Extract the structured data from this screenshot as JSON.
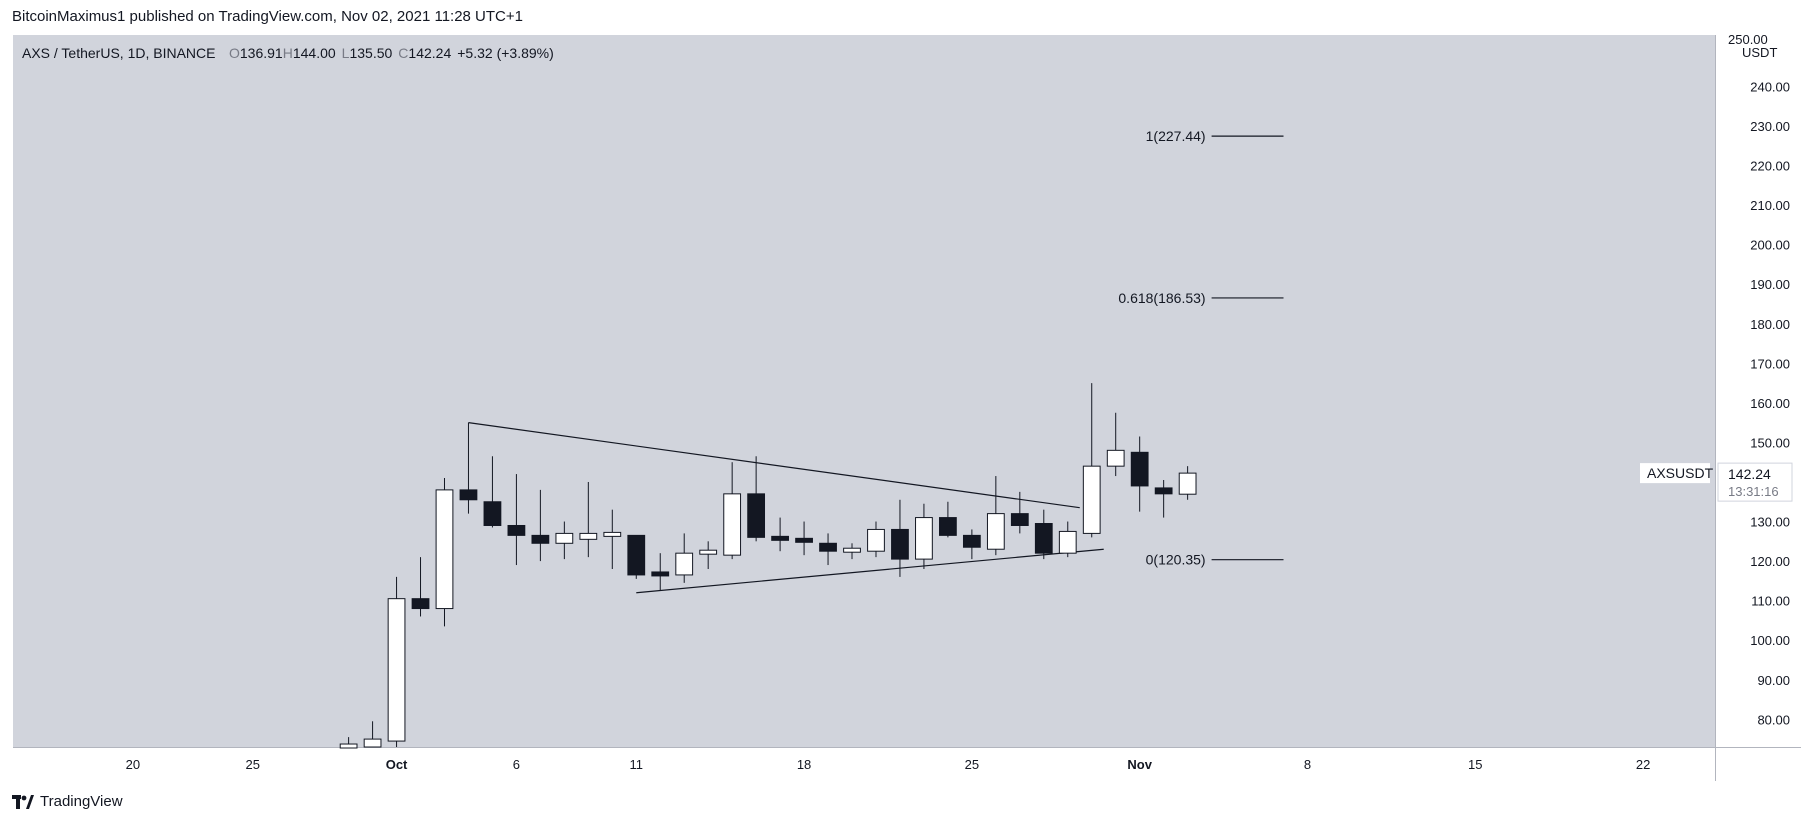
{
  "header": {
    "published_line": "BitcoinMaximus1 published on TradingView.com, Nov 02, 2021 11:28 UTC+1"
  },
  "footer": {
    "brand": "TradingView"
  },
  "colors": {
    "pane_bg": "#d1d4dc",
    "axis_bg": "#ffffff",
    "up_candle": "#ffffff",
    "down_candle": "#131722",
    "wick": "#131722",
    "text": "#131722"
  },
  "chart_data": {
    "type": "candlestick",
    "symbol_line": {
      "symbol": "AXS / TetherUS, 1D, BINANCE",
      "o_label": "O",
      "o_value": "136.91",
      "h_label": "H",
      "h_value": "144.00",
      "l_label": "L",
      "l_value": "135.50",
      "c_label": "C",
      "c_value": "142.24",
      "change": "+5.32 (+3.89%)"
    },
    "currency": "USDT",
    "ylim": [
      73,
      253
    ],
    "y_ticks": [
      "80.00",
      "90.00",
      "100.00",
      "110.00",
      "120.00",
      "130.00",
      "140.00",
      "150.00",
      "160.00",
      "170.00",
      "180.00",
      "190.00",
      "200.00",
      "210.00",
      "220.00",
      "230.00",
      "240.00"
    ],
    "y_tick_values": [
      80,
      90,
      100,
      110,
      120,
      130,
      140,
      150,
      160,
      170,
      180,
      190,
      200,
      210,
      220,
      230,
      240
    ],
    "x_ticks": [
      {
        "label": "20",
        "day": -11
      },
      {
        "label": "25",
        "day": -6
      },
      {
        "label": "Oct",
        "day": 0
      },
      {
        "label": "6",
        "day": 5
      },
      {
        "label": "11",
        "day": 10
      },
      {
        "label": "18",
        "day": 17
      },
      {
        "label": "25",
        "day": 24
      },
      {
        "label": "Nov",
        "day": 31
      },
      {
        "label": "8",
        "day": 38
      },
      {
        "label": "15",
        "day": 45
      },
      {
        "label": "22",
        "day": 52
      }
    ],
    "day_origin": "Oct 1, 2021",
    "xlim_days": [
      -16,
      55
    ],
    "candles": [
      {
        "day": -2,
        "o": 72,
        "h": 75.5,
        "l": 71,
        "c": 73.5
      },
      {
        "day": -1,
        "o": 73,
        "h": 79.5,
        "l": 72,
        "c": 75
      },
      {
        "day": 0,
        "o": 74.5,
        "h": 116,
        "l": 73,
        "c": 110.5
      },
      {
        "day": 1,
        "o": 110.5,
        "h": 121,
        "l": 106,
        "c": 108
      },
      {
        "day": 2,
        "o": 108,
        "h": 141,
        "l": 103.5,
        "c": 138
      },
      {
        "day": 3,
        "o": 138,
        "h": 155,
        "l": 132,
        "c": 135.5
      },
      {
        "day": 4,
        "o": 135,
        "h": 146.5,
        "l": 128.5,
        "c": 129
      },
      {
        "day": 5,
        "o": 129,
        "h": 142,
        "l": 119,
        "c": 126.5
      },
      {
        "day": 6,
        "o": 126.5,
        "h": 138,
        "l": 120,
        "c": 124.5
      },
      {
        "day": 7,
        "o": 124.5,
        "h": 130,
        "l": 120.5,
        "c": 127
      },
      {
        "day": 8,
        "o": 125.5,
        "h": 140,
        "l": 121,
        "c": 127
      },
      {
        "day": 9,
        "o": 126.5,
        "h": 133,
        "l": 118,
        "c": 127
      },
      {
        "day": 10,
        "o": 126.5,
        "h": 126.5,
        "l": 115.5,
        "c": 116.5
      },
      {
        "day": 11,
        "o": 117,
        "h": 122,
        "l": 112.5,
        "c": 116.5
      },
      {
        "day": 12,
        "o": 116.5,
        "h": 127,
        "l": 114.5,
        "c": 122
      },
      {
        "day": 13,
        "o": 122,
        "h": 125,
        "l": 118,
        "c": 122.5
      },
      {
        "day": 14,
        "o": 121.5,
        "h": 145,
        "l": 120.5,
        "c": 137
      },
      {
        "day": 15,
        "o": 137,
        "h": 146.5,
        "l": 125,
        "c": 126
      },
      {
        "day": 16,
        "o": 126,
        "h": 131,
        "l": 122.5,
        "c": 125.5
      },
      {
        "day": 17,
        "o": 125.5,
        "h": 130,
        "l": 121.5,
        "c": 125
      },
      {
        "day": 18,
        "o": 124.5,
        "h": 127,
        "l": 119,
        "c": 122.5
      },
      {
        "day": 19,
        "o": 122.5,
        "h": 124.5,
        "l": 120.5,
        "c": 123
      },
      {
        "day": 20,
        "o": 122.5,
        "h": 130,
        "l": 121,
        "c": 128
      },
      {
        "day": 21,
        "o": 128,
        "h": 135.5,
        "l": 116,
        "c": 120.5
      },
      {
        "day": 22,
        "o": 120.5,
        "h": 134.5,
        "l": 118,
        "c": 131
      },
      {
        "day": 23,
        "o": 131,
        "h": 135,
        "l": 126,
        "c": 126.5
      },
      {
        "day": 24,
        "o": 126.5,
        "h": 128,
        "l": 120.5,
        "c": 123.5
      },
      {
        "day": 25,
        "o": 123,
        "h": 141.5,
        "l": 121.5,
        "c": 132
      },
      {
        "day": 26,
        "o": 132,
        "h": 137.5,
        "l": 127,
        "c": 129
      },
      {
        "day": 27,
        "o": 129.5,
        "h": 133,
        "l": 120.5,
        "c": 122
      },
      {
        "day": 28,
        "o": 122,
        "h": 130,
        "l": 121,
        "c": 127.5
      },
      {
        "day": 29,
        "o": 127,
        "h": 165,
        "l": 126,
        "c": 144
      },
      {
        "day": 30,
        "o": 144,
        "h": 157.5,
        "l": 141.5,
        "c": 148
      },
      {
        "day": 31,
        "o": 147.5,
        "h": 151.5,
        "l": 132.5,
        "c": 139
      },
      {
        "day": 32,
        "o": 138.5,
        "h": 140.5,
        "l": 131,
        "c": 137
      },
      {
        "day": 33,
        "o": 136.91,
        "h": 144.0,
        "l": 135.5,
        "c": 142.24
      }
    ],
    "trendlines": [
      {
        "name": "upper",
        "x1": 3,
        "y1": 155,
        "x2": 28.5,
        "y2": 133.5
      },
      {
        "name": "lower",
        "x1": 10,
        "y1": 112,
        "x2": 29.5,
        "y2": 123
      }
    ],
    "fib_levels": [
      {
        "label": "1(227.44)",
        "value": 227.44
      },
      {
        "label": "0.618(186.53)",
        "value": 186.53
      },
      {
        "label": "0(120.35)",
        "value": 120.35
      }
    ],
    "fib_x_days": [
      34,
      37
    ],
    "price_label": {
      "symbol": "AXSUSDT",
      "price": "142.24",
      "countdown": "13:31:16",
      "value": 142.24
    },
    "top_cut_tick": "250.00"
  }
}
